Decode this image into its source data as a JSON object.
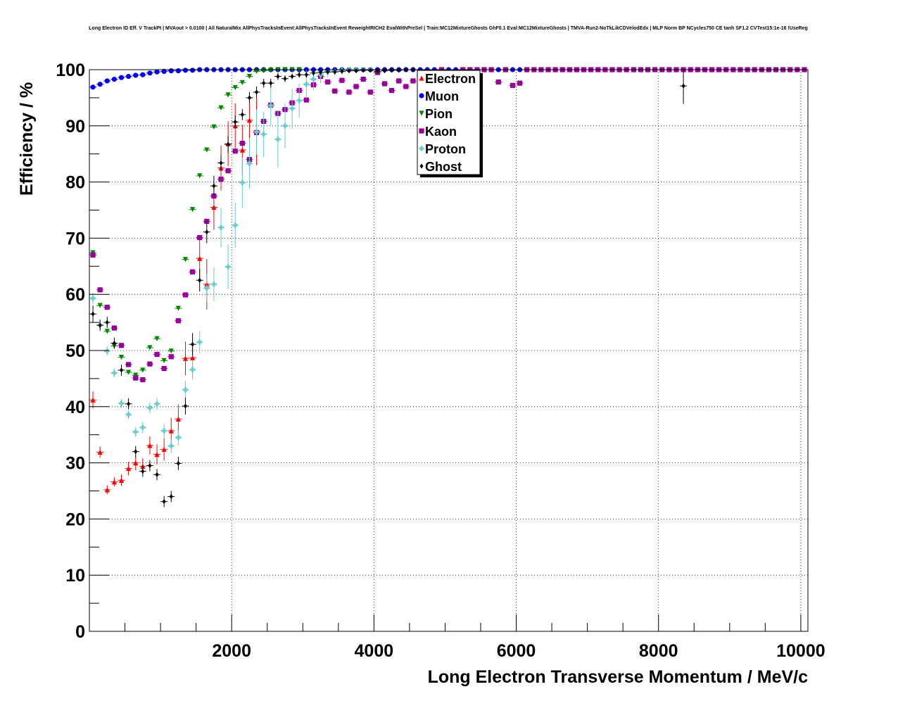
{
  "chart_data": {
    "type": "scatter",
    "title": "Long Electron ID Eff. V TrackPt | MVAout > 0.0100 | All NaturalMix AllPhysTracksInEvent:AllPhysTracksInEvent ReweightRICH2 EvalWithPreSel | Train:MC12MixtureGhosts GhF0.1 Eval:MC12MixtureGhosts | TMVA-Run2-NoTkLikCDVelodEdx | MLP Norm BP NCycles750 CE tanh SF1.2 CVTest15:1e-16 !UseReg",
    "xlabel": "Long Electron Transverse Momentum / MeV/c",
    "ylabel": "Efficiency / %",
    "xlim": [
      0,
      10100
    ],
    "ylim": [
      0,
      100
    ],
    "x_ticks": [
      2000,
      4000,
      6000,
      8000,
      10000
    ],
    "y_ticks": [
      0,
      10,
      20,
      30,
      40,
      50,
      60,
      70,
      80,
      90,
      100
    ],
    "grid": true,
    "legend_position": "top-center",
    "series": [
      {
        "name": "Electron",
        "color": "#ff0000",
        "marker": "triangle-up",
        "x": [
          50,
          150,
          250,
          350,
          450,
          550,
          650,
          750,
          850,
          950,
          1050,
          1150,
          1250,
          1350,
          1450,
          1550,
          1650,
          1750,
          1850,
          1950,
          2050,
          2150,
          2250,
          2350
        ],
        "y": [
          41.2,
          31.9,
          25.2,
          26.6,
          26.9,
          29.0,
          30.0,
          29.4,
          33.1,
          31.5,
          32.4,
          35.7,
          37.8,
          48.6,
          48.7,
          66.4,
          61.8,
          75.5,
          82.5,
          86.8,
          90.0,
          85.7,
          91.0,
          89.0
        ],
        "err": [
          1.5,
          1.0,
          0.8,
          0.8,
          1.0,
          1.2,
          1.3,
          1.4,
          1.6,
          1.8,
          2.0,
          2.3,
          2.6,
          3.0,
          3.5,
          4.0,
          4.5,
          4.0,
          4.0,
          4.0,
          4.0,
          4.5,
          5.0,
          6.0
        ]
      },
      {
        "name": "Muon",
        "color": "#0000ff",
        "marker": "circle",
        "x": [
          50,
          150,
          250,
          350,
          450,
          550,
          650,
          750,
          850,
          950,
          1050,
          1150,
          1250,
          1350,
          1450,
          1550,
          1650,
          1750,
          1850,
          1950,
          2050,
          2150,
          2250,
          2350,
          2450,
          2550,
          2650,
          2750,
          2850,
          2950,
          3050,
          3150,
          3250,
          3350,
          3450,
          3550,
          3650,
          3750,
          3850,
          3950,
          4050,
          4150,
          4250,
          4350,
          4450,
          4550,
          4650,
          4750,
          4850,
          4950,
          5050,
          5150,
          5250,
          5350,
          5450,
          5550,
          5650,
          5750,
          5850,
          5950,
          6050,
          6150,
          6250,
          6350,
          6450,
          6550,
          6650,
          6750,
          6850,
          6950,
          7050,
          7150,
          7250,
          7350,
          7450,
          7550,
          7650,
          7750,
          7850,
          7950,
          8050,
          8150,
          8250,
          8350,
          8450,
          8550,
          8650,
          8750,
          8850,
          8950,
          9050,
          9150,
          9250,
          9350,
          9450,
          9550,
          9650,
          9750,
          9850,
          9950,
          10050
        ],
        "y": [
          96.9,
          97.4,
          98.0,
          98.3,
          98.6,
          98.8,
          99.0,
          99.1,
          99.4,
          99.6,
          99.7,
          99.8,
          99.8,
          99.9,
          99.9,
          100,
          100,
          100,
          100,
          100,
          100,
          100,
          100,
          100,
          100,
          100,
          100,
          100,
          100,
          100,
          100,
          100,
          100,
          100,
          100,
          100,
          100,
          100,
          100,
          100,
          100,
          100,
          100,
          100,
          100,
          100,
          100,
          100,
          100,
          100,
          100,
          100,
          100,
          100,
          100,
          100,
          100,
          100,
          100,
          100,
          100,
          100,
          100,
          100,
          100,
          100,
          100,
          100,
          100,
          100,
          100,
          100,
          100,
          100,
          100,
          100,
          100,
          100,
          100,
          100,
          100,
          100,
          100,
          100,
          100,
          100,
          100,
          100,
          100,
          100,
          100,
          100,
          100,
          100,
          100,
          100,
          100,
          100,
          100,
          100,
          100
        ]
      },
      {
        "name": "Pion",
        "color": "#008800",
        "marker": "triangle-down",
        "x": [
          50,
          150,
          250,
          350,
          450,
          550,
          650,
          750,
          850,
          950,
          1050,
          1150,
          1250,
          1350,
          1450,
          1550,
          1650,
          1750,
          1850,
          1950,
          2050,
          2150,
          2250,
          2350,
          2450,
          2550,
          2650,
          2750,
          2850,
          2950
        ],
        "y": [
          67.4,
          58.0,
          53.4,
          50.8,
          48.8,
          46.1,
          45.6,
          46.5,
          50.5,
          52.1,
          48.2,
          49.9,
          57.5,
          66.2,
          75.1,
          81.1,
          85.7,
          89.8,
          93.2,
          95.5,
          96.8,
          97.7,
          98.8,
          99.7,
          99.8,
          99.9,
          100,
          100,
          100,
          100
        ]
      },
      {
        "name": "Kaon",
        "color": "#990099",
        "marker": "square",
        "x": [
          50,
          150,
          250,
          350,
          450,
          550,
          650,
          750,
          850,
          950,
          1050,
          1150,
          1250,
          1350,
          1450,
          1550,
          1650,
          1750,
          1850,
          1950,
          2050,
          2150,
          2250,
          2350,
          2450,
          2550,
          2650,
          2750,
          2850,
          2950,
          3050,
          3150,
          3250,
          3350,
          3450,
          3550,
          3650,
          3750,
          3850,
          3950,
          4050,
          4150,
          4250,
          4350,
          4450,
          4550,
          4650,
          4750,
          4850,
          4950,
          5050,
          5150,
          5250,
          5350,
          5450,
          5550,
          5650,
          5750,
          5850,
          5950,
          6050,
          6150,
          6250,
          6350,
          6450,
          6550,
          6650,
          6750,
          6850,
          6950,
          7050,
          7150,
          7250,
          7350,
          7450,
          7550,
          7650,
          7750,
          7850,
          7950,
          8050,
          8150,
          8250,
          8350,
          8450,
          8550,
          8650,
          8750,
          8850,
          8950,
          9050,
          9150,
          9250,
          9350,
          9450,
          9550,
          9650,
          9750,
          9850,
          9950,
          10050
        ],
        "y": [
          67.0,
          60.8,
          57.7,
          54.0,
          50.9,
          47.5,
          45.1,
          44.8,
          47.6,
          49.3,
          46.8,
          48.9,
          55.3,
          59.9,
          64.0,
          70.1,
          73.0,
          77.5,
          80.5,
          82.0,
          85.5,
          86.9,
          84.0,
          88.8,
          90.8,
          93.7,
          92.2,
          92.9,
          94.1,
          96.3,
          94.6,
          97.3,
          98.8,
          97.8,
          96.2,
          98.1,
          96.0,
          97.0,
          98.3,
          96.0,
          99.5,
          97.5,
          96.3,
          98.0,
          97.0,
          98.0,
          99.0,
          98.5,
          99.0,
          100,
          99.5,
          98.0,
          100,
          100,
          100,
          100,
          100,
          97.8,
          100,
          97.2,
          97.6,
          100,
          100,
          100,
          100,
          100,
          100,
          100,
          100,
          100,
          100,
          100,
          100,
          100,
          100,
          100,
          100,
          100,
          100,
          100,
          100,
          100,
          100,
          100,
          100,
          100,
          100,
          100,
          100,
          100,
          100,
          100,
          100,
          100,
          100,
          100,
          100,
          100,
          100,
          100,
          100
        ]
      },
      {
        "name": "Proton",
        "color": "#66cccc",
        "marker": "cross",
        "x": [
          50,
          150,
          250,
          350,
          450,
          550,
          650,
          750,
          850,
          950,
          1050,
          1150,
          1250,
          1350,
          1450,
          1550,
          1650,
          1750,
          1850,
          1950,
          2050,
          2150,
          2250,
          2350,
          2450,
          2550,
          2650,
          2750,
          2850,
          2950,
          3050,
          3150,
          3250,
          3350,
          3450,
          3550,
          3650,
          3750,
          3850,
          3950
        ],
        "y": [
          59.3,
          54.5,
          49.9,
          46.0,
          40.6,
          38.6,
          35.5,
          36.3,
          39.8,
          40.5,
          35.7,
          33.0,
          34.5,
          43.0,
          46.6,
          51.5,
          61.1,
          61.8,
          71.9,
          64.9,
          72.3,
          79.9,
          83.3,
          88.9,
          88.5,
          93.6,
          87.6,
          90.0,
          93.1,
          94.5,
          97.4,
          98.3,
          99.1,
          99.6,
          99.7,
          99.9,
          100,
          100,
          100,
          100
        ],
        "err": [
          1.0,
          0.8,
          0.8,
          0.8,
          0.8,
          0.8,
          0.9,
          1.0,
          1.0,
          1.1,
          1.2,
          1.3,
          1.4,
          1.6,
          1.8,
          2.0,
          2.5,
          3.0,
          3.5,
          4.0,
          4.0,
          4.5,
          4.5,
          4.0,
          4.0,
          3.5,
          5.0,
          4.0,
          3.5,
          3.0,
          2.5,
          2.0,
          1.5,
          1.0,
          0.8,
          0.6,
          0.5,
          0.5,
          0.5,
          0.5
        ]
      },
      {
        "name": "Ghost",
        "color": "#000000",
        "marker": "diamond",
        "x": [
          50,
          150,
          250,
          350,
          450,
          550,
          650,
          750,
          850,
          950,
          1050,
          1150,
          1250,
          1350,
          1450,
          1550,
          1650,
          1750,
          1850,
          1950,
          2050,
          2150,
          2250,
          2350,
          2450,
          2550,
          2650,
          2750,
          2850,
          2950,
          3050,
          3150,
          3250,
          3350,
          3450,
          3550,
          3650,
          3750,
          3850,
          3950,
          4050,
          4150,
          4250,
          4350,
          4450,
          4550,
          8350
        ],
        "y": [
          56.5,
          54.5,
          55.0,
          51.3,
          46.5,
          40.5,
          32.0,
          28.5,
          29.5,
          27.9,
          23.1,
          24.0,
          29.9,
          40.1,
          51.1,
          62.5,
          71.1,
          79.3,
          83.4,
          86.7,
          90.7,
          92.0,
          95.0,
          96.0,
          97.6,
          97.6,
          98.8,
          98.4,
          98.8,
          99.1,
          99.1,
          99.4,
          99.5,
          99.6,
          99.6,
          99.7,
          99.8,
          99.8,
          99.9,
          99.9,
          99.7,
          99.8,
          99.9,
          99.9,
          100,
          100,
          97.1
        ],
        "err": [
          1.5,
          1.0,
          1.0,
          1.0,
          1.0,
          1.0,
          1.0,
          1.0,
          1.0,
          1.0,
          1.0,
          1.0,
          1.2,
          1.5,
          2.0,
          2.0,
          2.0,
          1.8,
          1.5,
          1.5,
          1.2,
          1.0,
          1.0,
          1.0,
          0.8,
          0.8,
          0.6,
          0.6,
          0.5,
          0.5,
          0.5,
          0.5,
          0.5,
          0.4,
          0.4,
          0.4,
          0.4,
          0.4,
          0.3,
          0.3,
          0.3,
          0.3,
          0.3,
          0.3,
          0.3,
          0.3,
          3.2
        ]
      }
    ]
  }
}
